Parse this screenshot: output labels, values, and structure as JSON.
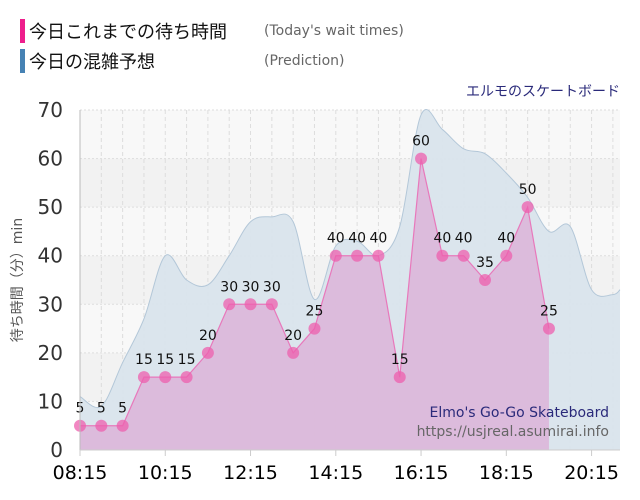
{
  "legend": {
    "actual_jp": "今日これまでの待ち時間",
    "actual_en": "(Today's wait times)",
    "prediction_jp": "今日の混雑予想",
    "prediction_en": "(Prediction)"
  },
  "ride_name_jp": "エルモのスケートボード",
  "watermark": {
    "ride_name_en": "Elmo's Go-Go Skateboard",
    "url": "https://usjreal.asumirai.info"
  },
  "colors": {
    "actual": "#ee1e8c",
    "prediction": "#4682b4",
    "actual_fill": "#dcb6d9",
    "prediction_fill": "#d9e4ec"
  },
  "chart_data": {
    "type": "area",
    "ylabel": "待ち時間（分）min",
    "ylim": [
      0,
      70
    ],
    "yticks": [
      0,
      10,
      20,
      30,
      40,
      50,
      60,
      70
    ],
    "xlim": [
      "08:15",
      "20:55"
    ],
    "xticks": [
      "08:15",
      "10:15",
      "12:15",
      "14:15",
      "16:15",
      "18:15",
      "20:15"
    ],
    "grid": true,
    "legend_position": "top-left",
    "series": [
      {
        "key": "actual",
        "times": [
          "08:15",
          "08:45",
          "09:15",
          "09:45",
          "10:15",
          "10:45",
          "11:15",
          "11:45",
          "12:15",
          "12:45",
          "13:15",
          "13:45",
          "14:15",
          "14:45",
          "15:15",
          "15:45",
          "16:15",
          "16:45",
          "17:15",
          "17:45",
          "18:15",
          "18:45",
          "19:15"
        ],
        "values": [
          5,
          5,
          5,
          15,
          15,
          15,
          20,
          30,
          30,
          30,
          20,
          25,
          40,
          40,
          40,
          15,
          60,
          40,
          40,
          35,
          40,
          50,
          25
        ]
      },
      {
        "key": "prediction",
        "times": [
          "08:15",
          "08:45",
          "09:15",
          "09:45",
          "10:15",
          "10:45",
          "11:15",
          "11:45",
          "12:15",
          "12:45",
          "13:15",
          "13:45",
          "14:15",
          "14:45",
          "15:15",
          "15:45",
          "16:15",
          "16:45",
          "17:15",
          "17:45",
          "18:15",
          "18:45",
          "19:15",
          "19:45",
          "20:15",
          "20:45",
          "20:55"
        ],
        "values": [
          11,
          9,
          18,
          27,
          40,
          35,
          34,
          40,
          47,
          48,
          47,
          31,
          42,
          43,
          40,
          46,
          69,
          66,
          62,
          61,
          57,
          52,
          45,
          46,
          33,
          32,
          33
        ]
      }
    ]
  }
}
